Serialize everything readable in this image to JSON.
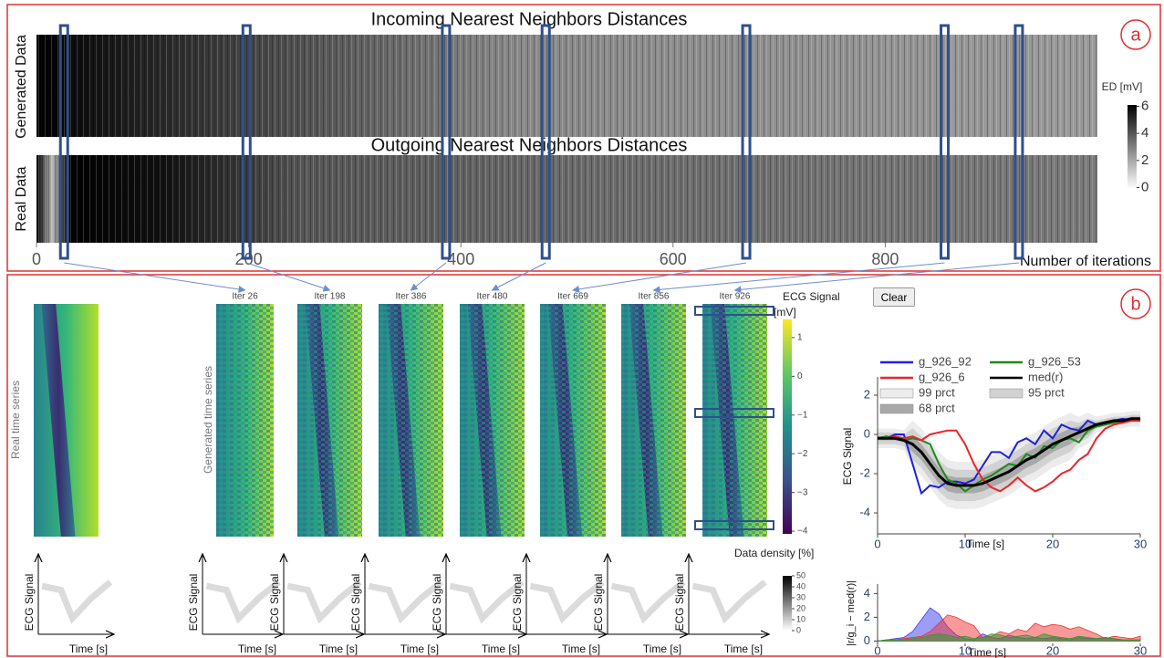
{
  "panel_labels": [
    "a",
    "b"
  ],
  "clear_button": "Clear",
  "chart_data": [
    {
      "type": "heatmap",
      "titles": [
        "Incoming Nearest Neighbors Distances",
        "Outgoing Nearest Neighbors Distances"
      ],
      "ylabels": [
        "Generated Data",
        "Real Data"
      ],
      "xlabel": "Number of iterations",
      "xlim": [
        0,
        1000
      ],
      "xticks": [
        0,
        200,
        400,
        600,
        800
      ],
      "highlighted_iterations": [
        26,
        198,
        386,
        480,
        669,
        856,
        926
      ],
      "colorbar": {
        "label": "ED [mV]",
        "lim": [
          -0.1,
          6.1
        ],
        "ticks": [
          0,
          2,
          4,
          6
        ]
      }
    },
    {
      "type": "heatmap-grid",
      "real_ylabel": "Real time series",
      "generated_ylabel": "Generated time series",
      "titles": [
        "Iter 26",
        "Iter 198",
        "Iter 386",
        "Iter 480",
        "Iter 669",
        "Iter 856",
        "Iter 926"
      ],
      "colorbar": {
        "label": [
          "ECG Signal",
          "[mV]"
        ],
        "lim": [
          -4.07,
          1.47
        ],
        "ticks": [
          1,
          0,
          {
            "value": -1,
            "label": "−1"
          },
          {
            "value": -2,
            "label": "−2"
          },
          {
            "value": -3,
            "label": "−3"
          },
          {
            "value": -4,
            "label": "−4"
          }
        ]
      },
      "density_colorbar": {
        "label": "Data density [%]",
        "lim": [
          0,
          50
        ],
        "ticks": [
          0,
          10,
          20,
          30,
          40,
          50
        ]
      },
      "density_ylabel": "ECG Signal",
      "density_xlabel": "Time [s]"
    },
    {
      "type": "line",
      "ylabel": "ECG Signal",
      "xlabel": "Time [s]",
      "xlim": [
        0,
        30
      ],
      "ylim": [
        -5.07,
        2.93
      ],
      "xticks": [
        0,
        10,
        20,
        30
      ],
      "yticks": [
        -4,
        -2,
        0,
        2
      ],
      "x": [
        0,
        1,
        2,
        3,
        4,
        5,
        6,
        7,
        8,
        9,
        10,
        11,
        12,
        13,
        14,
        15,
        16,
        17,
        18,
        19,
        20,
        21,
        22,
        23,
        24,
        25,
        26,
        27,
        28,
        29,
        30
      ],
      "series": [
        {
          "name": "g_926_92",
          "color": "#1f1fe0",
          "values": [
            -0.2,
            -0.2,
            0,
            0,
            -1.5,
            -3,
            -2.6,
            -2.7,
            -2.4,
            -2.4,
            -2.5,
            -2.3,
            -1.6,
            -0.9,
            -0.9,
            -1.2,
            -0.4,
            -0.2,
            -0.5,
            0.2,
            -0.2,
            0.5,
            0.3,
            0.2,
            0.7,
            0.5,
            0.6,
            0.7,
            0.8,
            0.7,
            0.8
          ]
        },
        {
          "name": "g_926_53",
          "color": "#1a8a1a",
          "values": [
            -0.2,
            -0.1,
            -0.2,
            -0.3,
            -0.2,
            -0.3,
            -0.5,
            -1.5,
            -2.3,
            -2.5,
            -2.9,
            -2.6,
            -2.3,
            -2.1,
            -1.8,
            -1.5,
            -1.6,
            -1.0,
            -1.2,
            -0.6,
            -0.7,
            -0.3,
            -0.2,
            -0.4,
            0.2,
            0.4,
            0.5,
            0.6,
            0.7,
            0.8,
            0.8
          ]
        },
        {
          "name": "g_926_6",
          "color": "#e8262a",
          "values": [
            -0.2,
            -0.2,
            -0.1,
            -0.2,
            -0.1,
            -0.3,
            0,
            0.1,
            0.2,
            0.2,
            -0.5,
            -1.5,
            -2.3,
            -2.7,
            -2.9,
            -2.6,
            -2.2,
            -2.6,
            -2.9,
            -2.7,
            -2.4,
            -2.0,
            -1.8,
            -1.3,
            -1.0,
            -0.2,
            0.3,
            0.5,
            0.6,
            0.7,
            0.7
          ]
        },
        {
          "name": "med(r)",
          "color": "#000000",
          "values": [
            -0.2,
            -0.2,
            -0.2,
            -0.3,
            -0.5,
            -0.9,
            -1.5,
            -2.1,
            -2.5,
            -2.6,
            -2.6,
            -2.6,
            -2.5,
            -2.3,
            -2.1,
            -1.9,
            -1.6,
            -1.3,
            -1.1,
            -0.8,
            -0.5,
            -0.3,
            -0.1,
            0.1,
            0.3,
            0.5,
            0.6,
            0.7,
            0.7,
            0.8,
            0.8
          ]
        }
      ],
      "bands": [
        {
          "name": "99 prct",
          "color": "#ececec",
          "low": [
            -0.7,
            -0.7,
            -0.7,
            -0.8,
            -1.7,
            -2.1,
            -2.7,
            -3.3,
            -3.7,
            -3.8,
            -3.8,
            -3.8,
            -3.7,
            -3.5,
            -3.3,
            -3.1,
            -2.8,
            -2.5,
            -2.3,
            -2.0,
            -1.7,
            -1.5,
            -1.3,
            -0.7,
            -0.5,
            0.1,
            0.2,
            0.3,
            0.3,
            0.4,
            0.4
          ],
          "high": [
            0.3,
            0.3,
            0.3,
            0.2,
            0.7,
            0.3,
            -0.3,
            -0.9,
            -1.3,
            -1.4,
            -1.4,
            -1.4,
            -1.3,
            -1.1,
            -0.9,
            -0.7,
            -0.4,
            -0.1,
            0.1,
            0.4,
            0.7,
            0.9,
            1.1,
            0.9,
            1.1,
            0.9,
            1.0,
            1.1,
            1.1,
            1.2,
            1.2
          ]
        },
        {
          "name": "95 prct",
          "color": "#d2d2d2",
          "low": [
            -0.5,
            -0.5,
            -0.5,
            -0.6,
            -1.3,
            -1.7,
            -2.3,
            -2.9,
            -3.3,
            -3.4,
            -3.4,
            -3.4,
            -3.3,
            -3.1,
            -2.9,
            -2.7,
            -2.4,
            -2.1,
            -1.9,
            -1.6,
            -1.3,
            -1.1,
            -0.9,
            -0.4,
            -0.2,
            0.3,
            0.4,
            0.5,
            0.5,
            0.6,
            0.6
          ],
          "high": [
            0.1,
            0.1,
            0.1,
            0,
            0.3,
            -0.1,
            -0.7,
            -1.3,
            -1.7,
            -1.8,
            -1.8,
            -1.8,
            -1.7,
            -1.5,
            -1.3,
            -1.1,
            -0.8,
            -0.5,
            -0.3,
            0,
            0.3,
            0.5,
            0.7,
            0.6,
            0.8,
            0.7,
            0.8,
            0.9,
            0.9,
            1.0,
            1.0
          ]
        },
        {
          "name": "68 prct",
          "color": "#a9a9a9",
          "low": [
            -0.3,
            -0.3,
            -0.3,
            -0.4,
            -0.9,
            -1.3,
            -1.9,
            -2.5,
            -2.9,
            -3.0,
            -3.0,
            -3.0,
            -2.9,
            -2.7,
            -2.5,
            -2.3,
            -2.0,
            -1.7,
            -1.5,
            -1.2,
            -0.9,
            -0.7,
            -0.5,
            -0.2,
            0,
            0.4,
            0.5,
            0.6,
            0.6,
            0.7,
            0.7
          ],
          "high": [
            -0.1,
            -0.1,
            -0.1,
            -0.2,
            -0.1,
            -0.5,
            -1.1,
            -1.7,
            -2.1,
            -2.2,
            -2.2,
            -2.2,
            -2.1,
            -1.9,
            -1.7,
            -1.5,
            -1.2,
            -0.9,
            -0.7,
            -0.4,
            -0.1,
            0.1,
            0.3,
            0.4,
            0.6,
            0.6,
            0.7,
            0.8,
            0.8,
            0.9,
            0.9
          ]
        }
      ]
    },
    {
      "type": "area",
      "ylabel": "|r/g_i − med(r)|",
      "xlabel": "Time [s]",
      "xlim": [
        0,
        30
      ],
      "ylim": [
        -0.2,
        4.8
      ],
      "xticks": [
        0,
        10,
        20,
        30
      ],
      "yticks": [
        0,
        2,
        4
      ],
      "x": [
        0,
        1,
        2,
        3,
        4,
        5,
        6,
        7,
        8,
        9,
        10,
        11,
        12,
        13,
        14,
        15,
        16,
        17,
        18,
        19,
        20,
        21,
        22,
        23,
        24,
        25,
        26,
        27,
        28,
        29,
        30
      ],
      "series": [
        {
          "color": "#3b3bf0",
          "values": [
            0,
            0.1,
            0.2,
            0.3,
            0.8,
            1.8,
            2.8,
            2.3,
            1.2,
            0.5,
            0.2,
            0.1,
            0.6,
            0.3,
            0.2,
            0.5,
            0.3,
            0.2,
            0.3,
            0.2,
            0.3,
            0.2,
            0.1,
            0.3,
            0.2,
            0.2,
            0.3,
            0.2,
            0.1,
            0.1,
            0.1
          ]
        },
        {
          "color": "#f03434",
          "values": [
            0,
            0.1,
            0.1,
            0.2,
            0.3,
            0.4,
            0.8,
            1.5,
            2.2,
            2.0,
            1.6,
            1.3,
            0.3,
            0.4,
            0.8,
            0.6,
            1.0,
            0.8,
            1.5,
            1.2,
            1.4,
            1.3,
            1.0,
            1.2,
            0.9,
            0.6,
            0.2,
            0.4,
            0.3,
            0.2,
            0.4
          ]
        },
        {
          "color": "#2a9a2a",
          "values": [
            0,
            0.1,
            0.1,
            0.1,
            0.2,
            0.3,
            0.5,
            0.6,
            0.5,
            0.3,
            0.4,
            0.2,
            0.3,
            0.6,
            0.5,
            0.3,
            0.4,
            0.5,
            0.3,
            0.6,
            0.4,
            0.3,
            0.2,
            0.4,
            0.3,
            0.2,
            0.3,
            0.2,
            0.1,
            0.1,
            0.1
          ]
        }
      ]
    }
  ]
}
